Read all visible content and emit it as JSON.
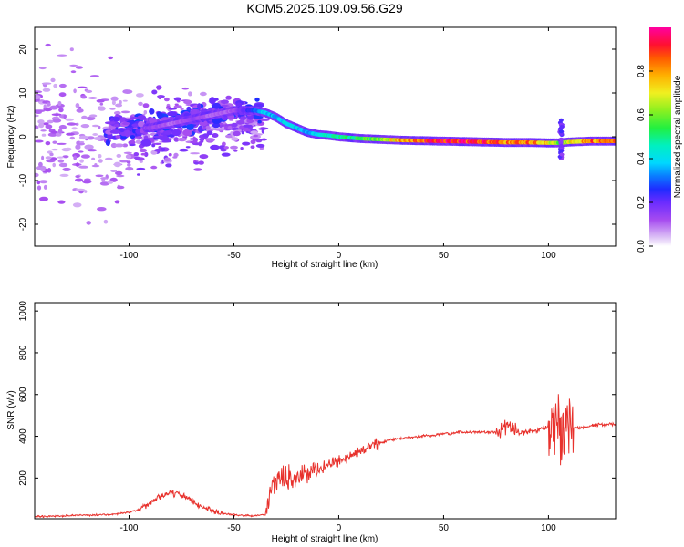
{
  "title": "KOM5.2025.109.09.56.G29",
  "chart_data": [
    {
      "type": "heatmap",
      "xlabel": "Height of straight line (km)",
      "ylabel": "Frequency (Hz)",
      "xlim": [
        -145,
        132
      ],
      "ylim": [
        -25,
        25
      ],
      "xticks": [
        -100,
        -50,
        0,
        50,
        100
      ],
      "yticks": [
        -20,
        -10,
        0,
        10,
        20
      ],
      "grid": false,
      "colorbar": {
        "label": "Normalized spectral amplitude",
        "range": [
          0,
          1
        ],
        "ticks": [
          "0.0",
          "0.2",
          "0.4",
          "0.6",
          "0.8"
        ],
        "colormap": "rainbow (white-lavender low, violet, blue, cyan, green, yellow, orange, red, magenta high)"
      },
      "ridge": {
        "description": "Doppler frequency of the dominant signal vs height",
        "x": [
          -90,
          -80,
          -70,
          -60,
          -50,
          -40,
          -35,
          -30,
          -25,
          -20,
          -15,
          -10,
          -5,
          0,
          10,
          20,
          30,
          40,
          50,
          60,
          70,
          80,
          90,
          100,
          105,
          110,
          120,
          130
        ],
        "y": [
          2,
          3,
          4,
          5,
          6,
          6,
          5.5,
          4.5,
          3,
          2,
          1,
          0.5,
          0.3,
          0,
          -0.4,
          -0.6,
          -0.8,
          -0.9,
          -1,
          -1.1,
          -1.2,
          -1.3,
          -1.3,
          -1.4,
          -1.4,
          -1.2,
          -1.0,
          -1.0
        ],
        "amplitude": [
          0.15,
          0.1,
          0.15,
          0.1,
          0.12,
          0.3,
          0.4,
          0.35,
          0.45,
          0.4,
          0.35,
          0.4,
          0.45,
          0.5,
          0.55,
          0.6,
          0.8,
          0.9,
          0.95,
          0.95,
          0.9,
          0.85,
          0.85,
          0.75,
          0.6,
          0.7,
          0.85,
          0.8
        ]
      }
    },
    {
      "type": "line",
      "xlabel": "Height of straight line (km)",
      "ylabel": "SNR (v/v)",
      "xlim": [
        -145,
        132
      ],
      "ylim": [
        5,
        1040
      ],
      "xticks": [
        -100,
        -50,
        0,
        50,
        100
      ],
      "yticks": [
        200,
        400,
        600,
        800,
        1000
      ],
      "grid": false,
      "series": [
        {
          "color": "#e8322d",
          "x": [
            -145,
            -130,
            -110,
            -100,
            -95,
            -90,
            -85,
            -80,
            -75,
            -70,
            -65,
            -60,
            -55,
            -50,
            -45,
            -40,
            -35,
            -33,
            -30,
            -25,
            -20,
            -15,
            -10,
            -5,
            0,
            5,
            10,
            15,
            20,
            25,
            30,
            40,
            50,
            60,
            70,
            75,
            80,
            85,
            90,
            95,
            100,
            103,
            105,
            107,
            109,
            112,
            115,
            120,
            125,
            132
          ],
          "y": [
            15,
            20,
            25,
            35,
            50,
            80,
            110,
            130,
            120,
            90,
            60,
            40,
            30,
            25,
            20,
            20,
            25,
            150,
            180,
            200,
            210,
            230,
            240,
            260,
            280,
            300,
            330,
            350,
            370,
            385,
            390,
            400,
            410,
            420,
            420,
            420,
            450,
            420,
            420,
            430,
            450,
            500,
            400,
            380,
            470,
            440,
            440,
            450,
            455,
            460
          ]
        }
      ]
    }
  ]
}
